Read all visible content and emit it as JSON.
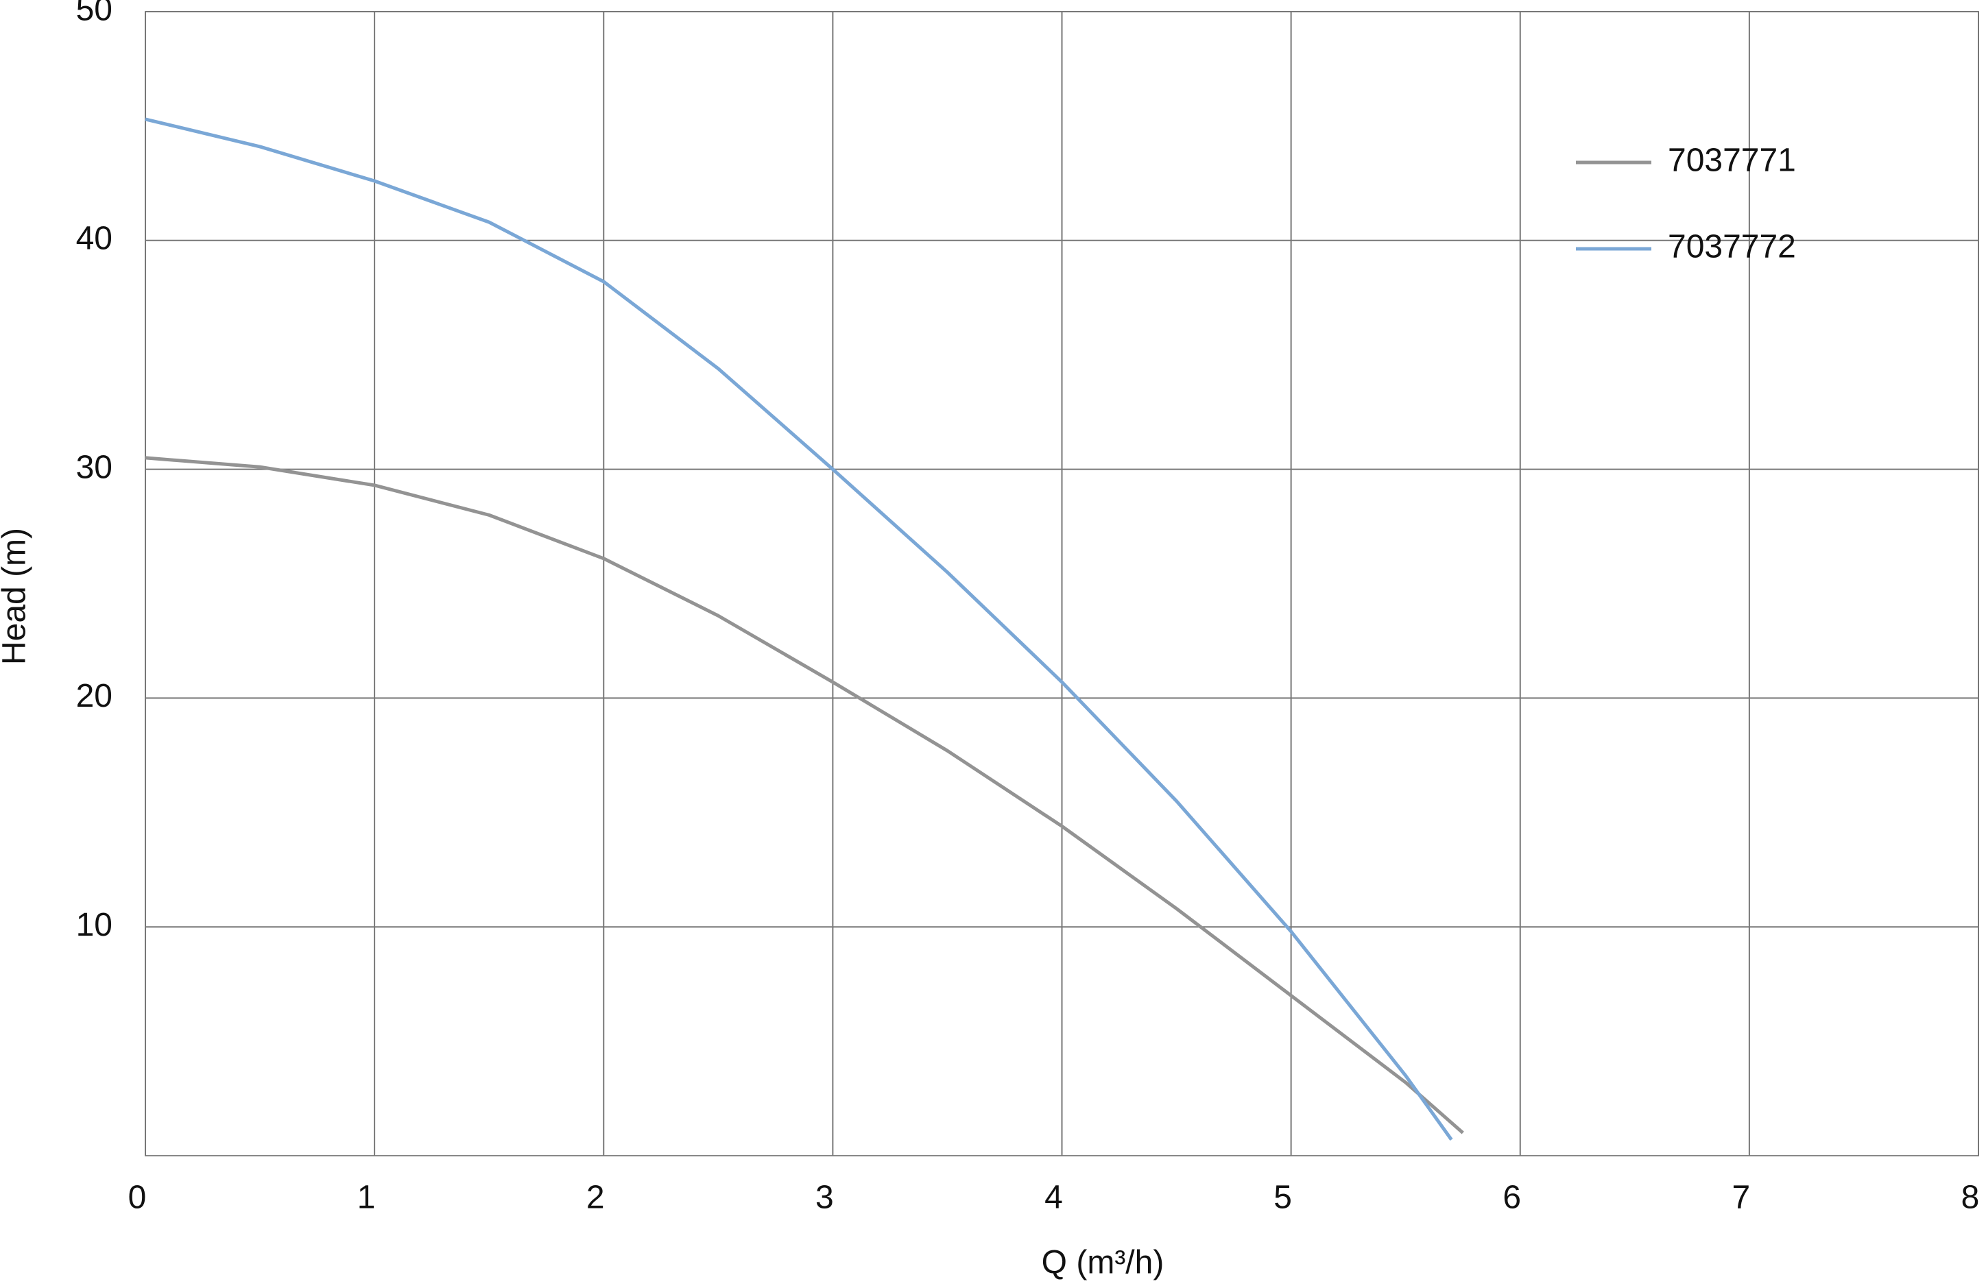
{
  "chart_data": {
    "type": "line",
    "x_label": "Q (m³/h)",
    "y_label": "Head (m)",
    "xlim": [
      0,
      8
    ],
    "xticks": [
      0,
      1,
      2,
      3,
      4,
      5,
      6,
      7,
      8
    ],
    "ylim": [
      0,
      50
    ],
    "yticks": [
      10,
      20,
      30,
      40,
      50
    ],
    "grid": true,
    "legend": "upper right",
    "series": [
      {
        "name": "7037771",
        "color": "#939393",
        "x": [
          0,
          0.5,
          1,
          1.5,
          2,
          2.5,
          3,
          3.5,
          4,
          4.5,
          5,
          5.5,
          5.75
        ],
        "values": [
          30.5,
          30.1,
          29.3,
          28,
          26.1,
          23.6,
          20.7,
          17.7,
          14.4,
          10.8,
          7,
          3.2,
          1
        ]
      },
      {
        "name": "7037772",
        "color": "#7aa7d6",
        "x": [
          0,
          0.5,
          1,
          1.5,
          2,
          2.5,
          3,
          3.5,
          4,
          4.5,
          5,
          5.5,
          5.7
        ],
        "values": [
          45.3,
          44.1,
          42.6,
          40.8,
          38.2,
          34.4,
          30,
          25.5,
          20.7,
          15.5,
          9.8,
          3.5,
          0.7
        ]
      }
    ]
  }
}
